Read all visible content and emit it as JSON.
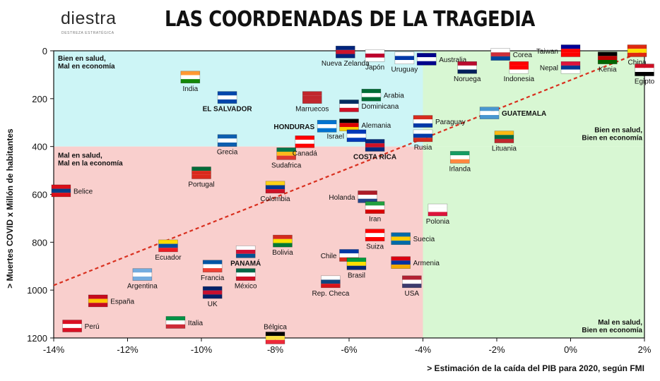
{
  "header": {
    "title": "LAS COORDENADAS DE LA TRAGEDIA",
    "logo_word": "diestra",
    "logo_tagline": "DESTREZA ESTRATÉGICA"
  },
  "chart_data": {
    "type": "scatter",
    "title": "LAS COORDENADAS DE LA TRAGEDIA",
    "xlabel": "> Estimación de la caída del PIB para 2020, según FMI",
    "ylabel": "> Muertes COVID x Millón de habitantes",
    "xlim": [
      -14,
      2
    ],
    "ylim": [
      0,
      1200
    ],
    "y_inverted": true,
    "x_ticks": [
      -14,
      -12,
      -10,
      -8,
      -6,
      -4,
      -2,
      0,
      2
    ],
    "x_tick_labels": [
      "-14%",
      "-12%",
      "-10%",
      "-8%",
      "-6%",
      "-4%",
      "-2%",
      "0%",
      "2%"
    ],
    "y_ticks": [
      0,
      200,
      400,
      600,
      800,
      1000,
      1200
    ],
    "y_tick_labels": [
      "0",
      "200",
      "400",
      "600",
      "800",
      "1000",
      "1200"
    ],
    "grid": false,
    "quadrant_split": {
      "x": -4,
      "y": 400
    },
    "quadrants": [
      {
        "label": [
          "Bien en salud,",
          "Mal en economía"
        ],
        "color": "#cdf5f6",
        "position": "top-left"
      },
      {
        "label": [
          "Bien en salud,",
          "Bien en economía"
        ],
        "color": "#d8f7d3",
        "position": "top-right"
      },
      {
        "label": [
          "Mal en salud,",
          "Mal en la economía"
        ],
        "color": "#f9cfcd",
        "position": "bottom-left"
      },
      {
        "label": [
          "Mal en salud,",
          "Bien en economía"
        ],
        "color": "#d8f7d3",
        "position": "bottom-right"
      }
    ],
    "trend_line": {
      "from": [
        -14,
        980
      ],
      "to": [
        2,
        0
      ],
      "color": "#d9301f",
      "style": "dashed"
    },
    "points": [
      {
        "label": "Perú",
        "x": -13.5,
        "y": 1150,
        "label_side": "right"
      },
      {
        "label": "España",
        "x": -12.8,
        "y": 1045,
        "label_side": "right"
      },
      {
        "label": "Belice",
        "x": -13.8,
        "y": 585,
        "label_side": "right"
      },
      {
        "label": "India",
        "x": -10.3,
        "y": 110,
        "label_side": "below"
      },
      {
        "label": "EL SALVADOR",
        "x": -9.3,
        "y": 195,
        "label_side": "below",
        "bold": true
      },
      {
        "label": "Grecia",
        "x": -9.3,
        "y": 375,
        "label_side": "below"
      },
      {
        "label": "Portugal",
        "x": -10.0,
        "y": 510,
        "label_side": "below"
      },
      {
        "label": "Ecuador",
        "x": -10.9,
        "y": 815,
        "label_side": "below"
      },
      {
        "label": "Argentina",
        "x": -11.6,
        "y": 935,
        "label_side": "below"
      },
      {
        "label": "Francia",
        "x": -9.7,
        "y": 900,
        "label_side": "below"
      },
      {
        "label": "UK",
        "x": -9.7,
        "y": 1010,
        "label_side": "below"
      },
      {
        "label": "Italia",
        "x": -10.7,
        "y": 1135,
        "label_side": "right"
      },
      {
        "label": "PANAMÁ",
        "x": -8.8,
        "y": 840,
        "label_side": "below",
        "bold": true
      },
      {
        "label": "México",
        "x": -8.8,
        "y": 935,
        "label_side": "below"
      },
      {
        "label": "Bolivia",
        "x": -7.8,
        "y": 795,
        "label_side": "below"
      },
      {
        "label": "Colombia",
        "x": -8.0,
        "y": 570,
        "label_side": "below"
      },
      {
        "label": "Sudafrica",
        "x": -7.7,
        "y": 430,
        "label_side": "below"
      },
      {
        "label": "Bélgica",
        "x": -8.0,
        "y": 1200,
        "label_side": "above"
      },
      {
        "label": "Marruecos",
        "x": -7.0,
        "y": 195,
        "label_side": "below"
      },
      {
        "label": "Canadá",
        "x": -7.2,
        "y": 380,
        "label_side": "below"
      },
      {
        "label": "HONDURAS",
        "x": -6.6,
        "y": 315,
        "label_side": "left",
        "bold": true
      },
      {
        "label": "Nueva Zelanda",
        "x": -6.1,
        "y": 5,
        "label_side": "below"
      },
      {
        "label": "Japón",
        "x": -5.3,
        "y": 20,
        "label_side": "below"
      },
      {
        "label": "Uruguay",
        "x": -4.5,
        "y": 30,
        "label_side": "below"
      },
      {
        "label": "Australia",
        "x": -3.9,
        "y": 35,
        "label_side": "right"
      },
      {
        "label": "Arabia",
        "x": -5.4,
        "y": 185,
        "label_side": "right"
      },
      {
        "label": "Dominicana",
        "x": -6.0,
        "y": 230,
        "label_side": "right"
      },
      {
        "label": "Alemania",
        "x": -6.0,
        "y": 310,
        "label_side": "right"
      },
      {
        "label": "Israel",
        "x": -5.8,
        "y": 355,
        "label_side": "left"
      },
      {
        "label": "COSTA RICA",
        "x": -5.3,
        "y": 395,
        "label_side": "below",
        "bold": true
      },
      {
        "label": "Paraguay",
        "x": -4.0,
        "y": 295,
        "label_side": "right"
      },
      {
        "label": "Rusia",
        "x": -4.0,
        "y": 355,
        "label_side": "below"
      },
      {
        "label": "Holanda",
        "x": -5.5,
        "y": 610,
        "label_side": "left"
      },
      {
        "label": "Iran",
        "x": -5.3,
        "y": 655,
        "label_side": "below"
      },
      {
        "label": "Suiza",
        "x": -5.3,
        "y": 770,
        "label_side": "below"
      },
      {
        "label": "Suecia",
        "x": -4.6,
        "y": 785,
        "label_side": "right"
      },
      {
        "label": "Chile",
        "x": -6.0,
        "y": 855,
        "label_side": "left"
      },
      {
        "label": "Brasil",
        "x": -5.8,
        "y": 890,
        "label_side": "below"
      },
      {
        "label": "Armenia",
        "x": -4.6,
        "y": 885,
        "label_side": "right"
      },
      {
        "label": "Rep. Checa",
        "x": -6.5,
        "y": 965,
        "label_side": "below"
      },
      {
        "label": "USA",
        "x": -4.3,
        "y": 965,
        "label_side": "below"
      },
      {
        "label": "Polonia",
        "x": -3.6,
        "y": 665,
        "label_side": "below"
      },
      {
        "label": "Irlanda",
        "x": -3.0,
        "y": 445,
        "label_side": "below"
      },
      {
        "label": "GUATEMALA",
        "x": -2.2,
        "y": 260,
        "label_side": "right",
        "bold": true
      },
      {
        "label": "Lituania",
        "x": -1.8,
        "y": 360,
        "label_side": "below"
      },
      {
        "label": "Corea",
        "x": -1.9,
        "y": 15,
        "label_side": "right"
      },
      {
        "label": "Noruega",
        "x": -2.8,
        "y": 70,
        "label_side": "below"
      },
      {
        "label": "Indonesia",
        "x": -1.4,
        "y": 70,
        "label_side": "below"
      },
      {
        "label": "Taiwan",
        "x": 0.0,
        "y": 0,
        "label_side": "left"
      },
      {
        "label": "Nepal",
        "x": 0.0,
        "y": 70,
        "label_side": "left"
      },
      {
        "label": "Kenia",
        "x": 1.0,
        "y": 30,
        "label_side": "below"
      },
      {
        "label": "China",
        "x": 1.8,
        "y": 0,
        "label_side": "below"
      },
      {
        "label": "Egipto",
        "x": 2.0,
        "y": 80,
        "label_side": "below"
      }
    ]
  },
  "flag_colors": {
    "Perú": [
      "#d91023",
      "#ffffff",
      "#d91023"
    ],
    "España": [
      "#c60b1e",
      "#ffc400",
      "#c60b1e"
    ],
    "Belice": [
      "#d90f19",
      "#003f87",
      "#d90f19"
    ],
    "India": [
      "#ff9933",
      "#ffffff",
      "#138808"
    ],
    "EL SALVADOR": [
      "#0047ab",
      "#ffffff",
      "#0047ab"
    ],
    "Grecia": [
      "#0d5eaf",
      "#ffffff",
      "#0d5eaf"
    ],
    "Portugal": [
      "#046a38",
      "#da291c",
      "#da291c"
    ],
    "Ecuador": [
      "#ffdd00",
      "#034ea2",
      "#ed1c24"
    ],
    "Argentina": [
      "#74acdf",
      "#ffffff",
      "#74acdf"
    ],
    "Francia": [
      "#0055a4",
      "#ffffff",
      "#ef4135"
    ],
    "UK": [
      "#012169",
      "#c8102e",
      "#012169"
    ],
    "Italia": [
      "#009246",
      "#ffffff",
      "#ce2b37"
    ],
    "PANAMÁ": [
      "#ffffff",
      "#d21034",
      "#005293"
    ],
    "México": [
      "#006847",
      "#ffffff",
      "#ce1126"
    ],
    "Bolivia": [
      "#d52b1e",
      "#f9e300",
      "#007934"
    ],
    "Colombia": [
      "#fcd116",
      "#003893",
      "#ce1126"
    ],
    "Sudafrica": [
      "#007749",
      "#ffb81c",
      "#de3831"
    ],
    "Bélgica": [
      "#000000",
      "#fae042",
      "#ed2939"
    ],
    "Marruecos": [
      "#c1272d",
      "#c1272d",
      "#c1272d"
    ],
    "Canadá": [
      "#ff0000",
      "#ffffff",
      "#ff0000"
    ],
    "HONDURAS": [
      "#0073cf",
      "#ffffff",
      "#0073cf"
    ],
    "Nueva Zelanda": [
      "#00247d",
      "#cc142b",
      "#00247d"
    ],
    "Japón": [
      "#ffffff",
      "#bc002d",
      "#ffffff"
    ],
    "Uruguay": [
      "#ffffff",
      "#0038a8",
      "#ffffff"
    ],
    "Australia": [
      "#00008b",
      "#ffffff",
      "#00008b"
    ],
    "Arabia": [
      "#006c35",
      "#ffffff",
      "#006c35"
    ],
    "Dominicana": [
      "#002d62",
      "#ffffff",
      "#ce1126"
    ],
    "Alemania": [
      "#000000",
      "#dd0000",
      "#ffce00"
    ],
    "Israel": [
      "#0038b8",
      "#ffffff",
      "#0038b8"
    ],
    "COSTA RICA": [
      "#002b7f",
      "#ce1126",
      "#002b7f"
    ],
    "Paraguay": [
      "#d52b1e",
      "#ffffff",
      "#0038a8"
    ],
    "Rusia": [
      "#ffffff",
      "#0039a6",
      "#d52b1e"
    ],
    "Holanda": [
      "#ae1c28",
      "#ffffff",
      "#21468b"
    ],
    "Iran": [
      "#239f40",
      "#ffffff",
      "#da0000"
    ],
    "Suiza": [
      "#ff0000",
      "#ffffff",
      "#ff0000"
    ],
    "Suecia": [
      "#006aa7",
      "#fecc00",
      "#006aa7"
    ],
    "Chile": [
      "#0039a6",
      "#ffffff",
      "#d52b1e"
    ],
    "Brasil": [
      "#009c3b",
      "#ffdf00",
      "#002776"
    ],
    "Armenia": [
      "#d90012",
      "#0033a0",
      "#f2a800"
    ],
    "Rep. Checa": [
      "#ffffff",
      "#11457e",
      "#d7141a"
    ],
    "USA": [
      "#b22234",
      "#ffffff",
      "#3c3b6e"
    ],
    "Polonia": [
      "#ffffff",
      "#ffffff",
      "#dc143c"
    ],
    "Irlanda": [
      "#169b62",
      "#ffffff",
      "#ff883e"
    ],
    "GUATEMALA": [
      "#4997d0",
      "#ffffff",
      "#4997d0"
    ],
    "Lituania": [
      "#fdb913",
      "#006a44",
      "#c1272d"
    ],
    "Corea": [
      "#ffffff",
      "#cd2e3a",
      "#0047a0"
    ],
    "Noruega": [
      "#ba0c2f",
      "#ffffff",
      "#00205b"
    ],
    "Indonesia": [
      "#ff0000",
      "#ff0000",
      "#ffffff"
    ],
    "Taiwan": [
      "#000095",
      "#fe0000",
      "#fe0000"
    ],
    "Nepal": [
      "#dc143c",
      "#003893",
      "#ffffff"
    ],
    "Kenia": [
      "#000000",
      "#bb0000",
      "#006600"
    ],
    "China": [
      "#de2910",
      "#ffde00",
      "#de2910"
    ],
    "Egipto": [
      "#ce1126",
      "#ffffff",
      "#000000"
    ]
  }
}
